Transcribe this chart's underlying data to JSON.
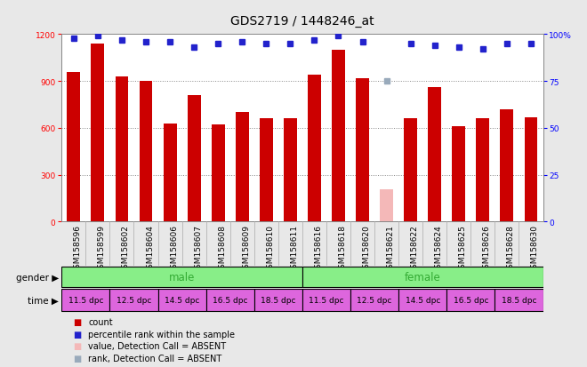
{
  "title": "GDS2719 / 1448246_at",
  "samples": [
    "GSM158596",
    "GSM158599",
    "GSM158602",
    "GSM158604",
    "GSM158606",
    "GSM158607",
    "GSM158608",
    "GSM158609",
    "GSM158610",
    "GSM158611",
    "GSM158616",
    "GSM158618",
    "GSM158620",
    "GSM158621",
    "GSM158622",
    "GSM158624",
    "GSM158625",
    "GSM158626",
    "GSM158628",
    "GSM158630"
  ],
  "counts": [
    960,
    1140,
    930,
    900,
    630,
    810,
    620,
    700,
    660,
    660,
    940,
    1100,
    920,
    210,
    660,
    860,
    610,
    660,
    720,
    670
  ],
  "counts_absent": [
    false,
    false,
    false,
    false,
    false,
    false,
    false,
    false,
    false,
    false,
    false,
    false,
    false,
    true,
    false,
    false,
    false,
    false,
    false,
    false
  ],
  "percentile_ranks": [
    98,
    99,
    97,
    96,
    96,
    93,
    95,
    96,
    95,
    95,
    97,
    99,
    96,
    75,
    95,
    94,
    93,
    92,
    95,
    95
  ],
  "rank_absent": [
    false,
    false,
    false,
    false,
    false,
    false,
    false,
    false,
    false,
    false,
    false,
    false,
    false,
    true,
    false,
    false,
    false,
    false,
    false,
    false
  ],
  "ylim": [
    0,
    1200
  ],
  "yticks_left": [
    0,
    300,
    600,
    900,
    1200
  ],
  "yticks_right": [
    0,
    25,
    50,
    75,
    100
  ],
  "bar_color_normal": "#cc0000",
  "bar_color_absent": "#f4b8b8",
  "rank_color_normal": "#2222cc",
  "rank_color_absent": "#99aabb",
  "gender_male_color": "#88ee88",
  "gender_female_color": "#cc88cc",
  "gender_label_color": "#33aa33",
  "time_block_color": "#dd66dd",
  "background_color": "#e8e8e8",
  "plot_bg": "#ffffff",
  "xtick_bg": "#cccccc",
  "title_fontsize": 10,
  "tick_fontsize": 6.5,
  "bar_label_fontsize": 7,
  "legend_items": [
    {
      "label": "count",
      "color": "#cc0000"
    },
    {
      "label": "percentile rank within the sample",
      "color": "#2222cc"
    },
    {
      "label": "value, Detection Call = ABSENT",
      "color": "#f4b8b8"
    },
    {
      "label": "rank, Detection Call = ABSENT",
      "color": "#99aabb"
    }
  ],
  "time_labels": [
    "11.5 dpc",
    "12.5 dpc",
    "14.5 dpc",
    "16.5 dpc",
    "18.5 dpc"
  ]
}
